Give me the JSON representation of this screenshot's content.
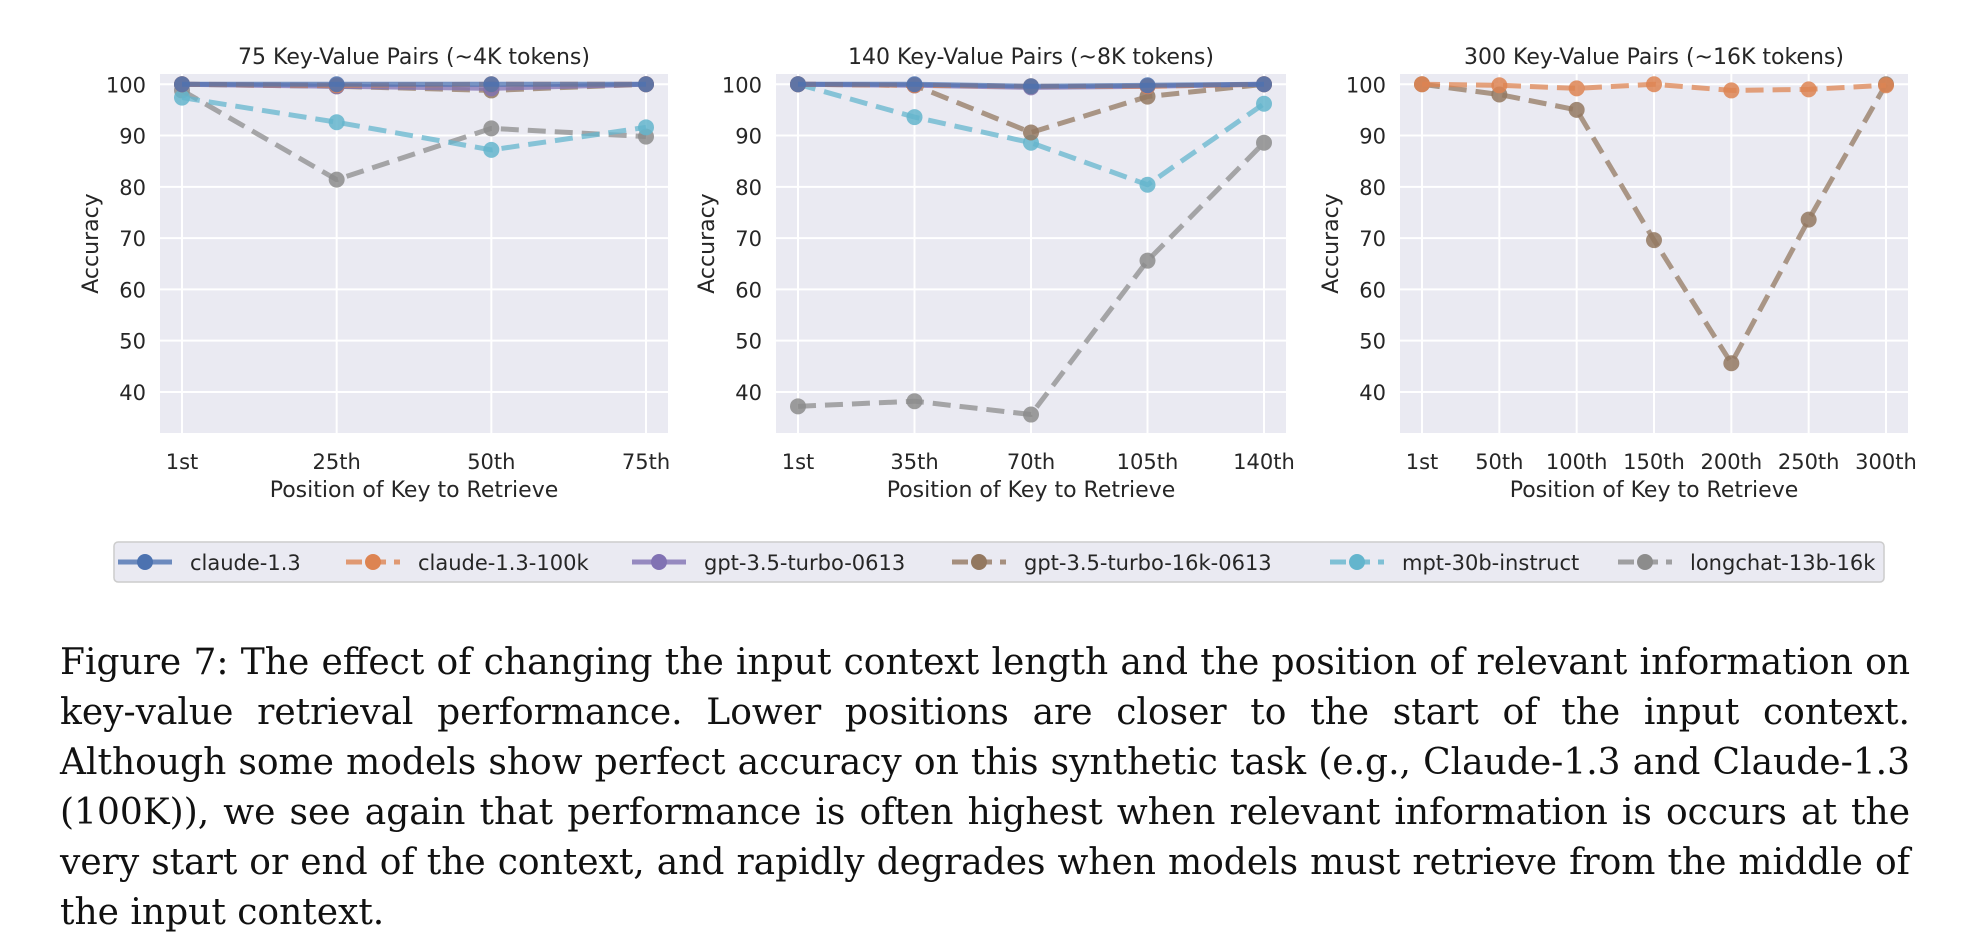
{
  "chart_data": [
    {
      "type": "line",
      "title": "75 Key-Value Pairs (~4K tokens)",
      "xlabel": "Position of Key to Retrieve",
      "ylabel": "Accuracy",
      "categories": [
        "1st",
        "25th",
        "50th",
        "75th"
      ],
      "yticks": [
        40,
        50,
        60,
        70,
        80,
        90,
        100
      ],
      "ylim": [
        32,
        102
      ],
      "grid": true,
      "series": [
        {
          "name": "claude-1.3",
          "values": [
            100,
            100,
            100,
            100
          ]
        },
        {
          "name": "claude-1.3-100k",
          "values": [
            100,
            99.8,
            100,
            100
          ]
        },
        {
          "name": "gpt-3.5-turbo-0613",
          "values": [
            100,
            99.6,
            99.2,
            100
          ]
        },
        {
          "name": "gpt-3.5-turbo-16k-0613",
          "values": [
            100,
            99.6,
            98.8,
            100
          ]
        },
        {
          "name": "mpt-30b-instruct",
          "values": [
            97.4,
            92.6,
            87.2,
            91.6
          ]
        },
        {
          "name": "longchat-13b-16k",
          "values": [
            98.8,
            81.4,
            91.4,
            89.8
          ]
        }
      ]
    },
    {
      "type": "line",
      "title": "140 Key-Value Pairs (~8K tokens)",
      "xlabel": "Position of Key to Retrieve",
      "ylabel": "Accuracy",
      "categories": [
        "1st",
        "35th",
        "70th",
        "105th",
        "140th"
      ],
      "yticks": [
        40,
        50,
        60,
        70,
        80,
        90,
        100
      ],
      "ylim": [
        32,
        102
      ],
      "grid": true,
      "series": [
        {
          "name": "claude-1.3",
          "values": [
            100,
            100,
            99.6,
            99.8,
            100
          ]
        },
        {
          "name": "claude-1.3-100k",
          "values": [
            100,
            99.8,
            99.6,
            99.6,
            100
          ]
        },
        {
          "name": "gpt-3.5-turbo-0613",
          "values": [
            100,
            99.8,
            99.4,
            99.6,
            100
          ]
        },
        {
          "name": "gpt-3.5-turbo-16k-0613",
          "values": [
            100,
            99.8,
            90.6,
            97.6,
            100
          ]
        },
        {
          "name": "mpt-30b-instruct",
          "values": [
            100,
            93.6,
            88.6,
            80.4,
            96.2
          ]
        },
        {
          "name": "longchat-13b-16k",
          "values": [
            37.2,
            38.2,
            35.6,
            65.6,
            88.6
          ]
        }
      ]
    },
    {
      "type": "line",
      "title": "300 Key-Value Pairs (~16K tokens)",
      "xlabel": "Position of Key to Retrieve",
      "ylabel": "Accuracy",
      "categories": [
        "1st",
        "50th",
        "100th",
        "150th",
        "200th",
        "250th",
        "300th"
      ],
      "yticks": [
        40,
        50,
        60,
        70,
        80,
        90,
        100
      ],
      "ylim": [
        32,
        102
      ],
      "grid": true,
      "series": [
        {
          "name": "claude-1.3-100k",
          "values": [
            100,
            99.8,
            99.2,
            100,
            98.8,
            99,
            99.8
          ]
        },
        {
          "name": "gpt-3.5-turbo-16k-0613",
          "values": [
            100,
            98,
            95,
            69.6,
            45.6,
            73.6,
            100
          ]
        }
      ]
    }
  ],
  "legend": {
    "position": "bottom",
    "items": [
      {
        "name": "claude-1.3",
        "color": "#4c72b0"
      },
      {
        "name": "claude-1.3-100k",
        "color": "#dd8452"
      },
      {
        "name": "gpt-3.5-turbo-0613",
        "color": "#8172b3"
      },
      {
        "name": "gpt-3.5-turbo-16k-0613",
        "color": "#937860"
      },
      {
        "name": "mpt-30b-instruct",
        "color": "#64b5cd"
      },
      {
        "name": "longchat-13b-16k",
        "color": "#8c8c8c"
      }
    ]
  },
  "series_styles": {
    "claude-1.3": {
      "color": "#4c72b0",
      "dashed": false
    },
    "claude-1.3-100k": {
      "color": "#dd8452",
      "dashed": true
    },
    "gpt-3.5-turbo-0613": {
      "color": "#8172b3",
      "dashed": false
    },
    "gpt-3.5-turbo-16k-0613": {
      "color": "#937860",
      "dashed": true
    },
    "mpt-30b-instruct": {
      "color": "#64b5cd",
      "dashed": true
    },
    "longchat-13b-16k": {
      "color": "#8c8c8c",
      "dashed": true
    }
  },
  "caption": "Figure 7: The effect of changing the input context length and the position of relevant information on key-value retrieval performance. Lower positions are closer to the start of the input context. Although some models show perfect accuracy on this synthetic task (e.g., Claude-1.3 and Claude-1.3 (100K)), we see again that performance is often highest when relevant information is occurs at the very start or end of the context, and rapidly degrades when models must retrieve from the middle of the input context."
}
